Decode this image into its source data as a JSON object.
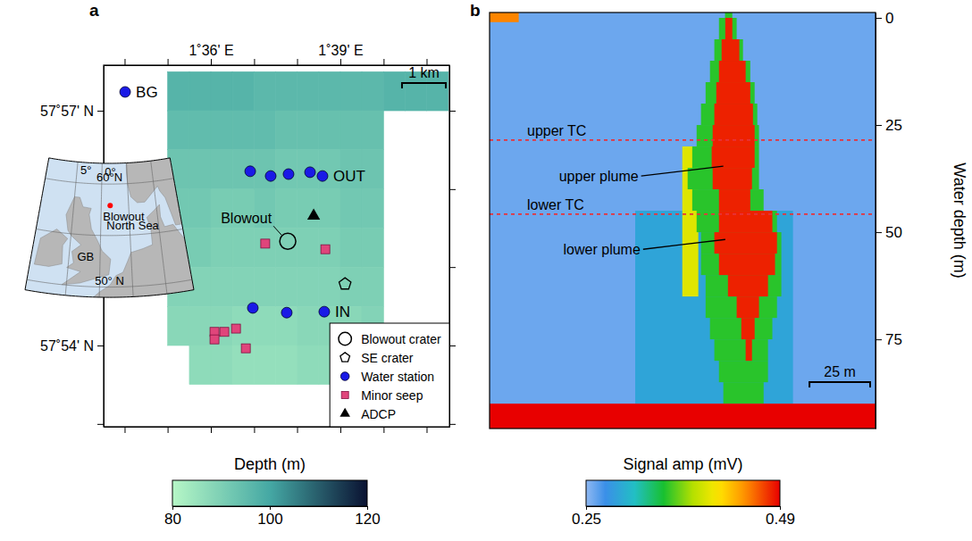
{
  "chart_data": [
    {
      "type": "map",
      "panel": "a",
      "xlim": [
        1.5586,
        1.6921
      ],
      "ylim": [
        57.8827,
        57.9597
      ],
      "xticks": [
        {
          "value": 1.5667,
          "label": null
        },
        {
          "value": 1.5833,
          "label": null
        },
        {
          "value": 1.6,
          "label": "1˚36' E"
        },
        {
          "value": 1.6167,
          "label": null
        },
        {
          "value": 1.6333,
          "label": null
        },
        {
          "value": 1.65,
          "label": "1˚39' E"
        },
        {
          "value": 1.6667,
          "label": null
        },
        {
          "value": 1.6833,
          "label": null
        }
      ],
      "yticks": [
        {
          "value": 57.8833,
          "label": null
        },
        {
          "value": 57.9,
          "label": "57˚54' N"
        },
        {
          "value": 57.9167,
          "label": null
        },
        {
          "value": 57.9333,
          "label": null
        },
        {
          "value": 57.95,
          "label": "57˚57' N"
        }
      ],
      "depth": {
        "lon_edges": [
          1.5833,
          1.5917,
          1.6,
          1.6083,
          1.6167,
          1.625,
          1.6333,
          1.6417,
          1.65,
          1.6583,
          1.6667,
          1.675,
          1.6833,
          1.6917
        ],
        "lat_edges": [
          57.9583,
          57.95,
          57.9417,
          57.9333,
          57.925,
          57.9167,
          57.9083,
          57.9,
          57.8917
        ],
        "values": [
          [
            97,
            97,
            97,
            97,
            96,
            96,
            96,
            96,
            96,
            96,
            97,
            97,
            97
          ],
          [
            95,
            95,
            95,
            95,
            95,
            94,
            94,
            94,
            94,
            94,
            null,
            null,
            null
          ],
          [
            93,
            93,
            93,
            93,
            93,
            92,
            92,
            92,
            93,
            93,
            null,
            null,
            null
          ],
          [
            92,
            92,
            91,
            91,
            92,
            91,
            91,
            91,
            92,
            92,
            null,
            null,
            null
          ],
          [
            91,
            91,
            90,
            90,
            90,
            90,
            90,
            90,
            91,
            91,
            null,
            null,
            null
          ],
          [
            89,
            89,
            89,
            89,
            89,
            89,
            89,
            89,
            90,
            90,
            null,
            null,
            null
          ],
          [
            88,
            88,
            88,
            87,
            87,
            87,
            88,
            88,
            88,
            89,
            null,
            null,
            null
          ],
          [
            null,
            87,
            87,
            86,
            86,
            86,
            87,
            87,
            87,
            88,
            null,
            null,
            null
          ]
        ]
      },
      "colorbar": {
        "label": "Depth (m)",
        "range": [
          80,
          120
        ],
        "ticks": [
          80,
          100,
          120
        ]
      },
      "series": [
        {
          "name": "Blowout crater",
          "marker": "open_circle",
          "color": "#000000",
          "lon": [
            1.6297
          ],
          "lat": [
            57.9222
          ],
          "point_labels": [
            "Blowout"
          ]
        },
        {
          "name": "SE crater",
          "marker": "pentagon",
          "color": "#000000",
          "lon": [
            1.6518
          ],
          "lat": [
            57.9131
          ]
        },
        {
          "name": "Water station",
          "marker": "circle",
          "color": "#1a1ae6",
          "lon": [
            1.5669,
            1.6152,
            1.6231,
            1.63,
            1.6383,
            1.6431,
            1.6162,
            1.6293,
            1.6438
          ],
          "lat": [
            57.954,
            57.9371,
            57.9361,
            57.9365,
            57.9369,
            57.9361,
            57.908,
            57.907,
            57.9072
          ],
          "point_labels": [
            "BG",
            null,
            null,
            null,
            null,
            "OUT",
            null,
            null,
            "IN"
          ]
        },
        {
          "name": "Minor seep",
          "marker": "square",
          "color": "#e0457b",
          "lon": [
            1.621,
            1.6442,
            1.6014,
            1.6014,
            1.6052,
            1.6097,
            1.6135
          ],
          "lat": [
            57.9217,
            57.9205,
            57.9029,
            57.9013,
            57.9029,
            57.9036,
            57.8994
          ]
        },
        {
          "name": "ADCP",
          "marker": "triangle",
          "color": "#000000",
          "lon": [
            1.6397
          ],
          "lat": [
            57.9276
          ]
        }
      ],
      "legend": "lower right",
      "scale_bar": {
        "label": "1 km",
        "length": 1
      },
      "inset": {
        "lonlim": [
          -11,
          14
        ],
        "latlim": [
          49,
          62
        ],
        "lon_ticks": [
          {
            "value": -5,
            "label": "5°"
          },
          {
            "value": 0,
            "label": "0°"
          },
          {
            "value": 5,
            "label": null
          },
          {
            "value": 10,
            "label": null
          }
        ],
        "lat_ticks": [
          {
            "value": 50,
            "label": "50° N"
          },
          {
            "value": 55,
            "label": null
          },
          {
            "value": 60,
            "label": "60°N"
          }
        ],
        "labels": [
          {
            "text": "GB",
            "lon": -2.3,
            "lat": 52.5
          },
          {
            "text": "North Sea",
            "lon": 5.5,
            "lat": 55.5
          }
        ],
        "site": {
          "label": "Blowout",
          "lon": 1.63,
          "lat": 57.92,
          "color": "#ff0000"
        }
      }
    },
    {
      "type": "heatmap",
      "panel": "b",
      "xlim": [
        0,
        159
      ],
      "ylim": [
        -1.25,
        95.8
      ],
      "yticks": [
        0,
        25,
        50,
        75
      ],
      "ylabel": "Water depth (m)",
      "tick_labels": "y",
      "background": 0.26,
      "cells": [
        [
          60,
          125,
          45,
          90,
          0.29
        ],
        [
          79.4,
          86.0,
          30,
          65,
          0.4
        ],
        [
          97,
          100,
          -1.25,
          0,
          0.35
        ],
        [
          94.5,
          101.8,
          0,
          5,
          0.35
        ],
        [
          92.6,
          104.4,
          5,
          10,
          0.35
        ],
        [
          90.8,
          107.4,
          10,
          15,
          0.35
        ],
        [
          89.0,
          109.2,
          15,
          20,
          0.35
        ],
        [
          87.1,
          110.3,
          20,
          25,
          0.35
        ],
        [
          85.3,
          111.0,
          25,
          30,
          0.35
        ],
        [
          83.5,
          111.0,
          30,
          35,
          0.35
        ],
        [
          81.6,
          111.0,
          35,
          40,
          0.35
        ],
        [
          83.5,
          112.9,
          40,
          45,
          0.35
        ],
        [
          85.3,
          118.4,
          45,
          50,
          0.35
        ],
        [
          87.1,
          120.2,
          50,
          55,
          0.35
        ],
        [
          87.1,
          120.2,
          55,
          60,
          0.35
        ],
        [
          89.0,
          120.2,
          60,
          65,
          0.35
        ],
        [
          89.0,
          118.4,
          65,
          70,
          0.35
        ],
        [
          90.8,
          116.5,
          70,
          75,
          0.35
        ],
        [
          92.6,
          114.7,
          75,
          80,
          0.35
        ],
        [
          94.5,
          114.7,
          80,
          85,
          0.35
        ],
        [
          96.3,
          112.9,
          85,
          90,
          0.35
        ],
        [
          97.1,
          100.0,
          0,
          5,
          0.48
        ],
        [
          95.6,
          102.9,
          5,
          10,
          0.48
        ],
        [
          94.5,
          105.5,
          10,
          15,
          0.48
        ],
        [
          93.4,
          107.4,
          15,
          20,
          0.48
        ],
        [
          92.6,
          108.5,
          20,
          25,
          0.48
        ],
        [
          91.9,
          109.2,
          25,
          30,
          0.48
        ],
        [
          91.5,
          109.2,
          30,
          35,
          0.48
        ],
        [
          91.9,
          108.1,
          35,
          40,
          0.48
        ],
        [
          94.5,
          107.4,
          40,
          45,
          0.48
        ],
        [
          94.5,
          116.5,
          45,
          50,
          0.48
        ],
        [
          92.6,
          118.4,
          50,
          55,
          0.48
        ],
        [
          94.5,
          117.6,
          55,
          60,
          0.48
        ],
        [
          98.2,
          114.7,
          60,
          65,
          0.48
        ],
        [
          101.8,
          111.0,
          65,
          70,
          0.48
        ],
        [
          103.7,
          109.2,
          70,
          75,
          0.48
        ],
        [
          105.5,
          108.1,
          75,
          80,
          0.48
        ],
        [
          0,
          159,
          90,
          95.8,
          0.49
        ],
        [
          0,
          12,
          -1.25,
          1,
          0.45
        ]
      ],
      "lines": [
        {
          "label": "upper TC",
          "depth": 28.5,
          "color": "#e8333a",
          "line_style": "dashed"
        },
        {
          "label": "lower TC",
          "depth": 45.8,
          "color": "#e8333a",
          "line_style": "dashed"
        }
      ],
      "annotations": [
        {
          "text": "upper plume",
          "x": 96.3,
          "depth": 34.6
        },
        {
          "text": "lower plume",
          "x": 97.1,
          "depth": 51.7
        }
      ],
      "colorbar": {
        "label": "Signal amp (mV)",
        "range": [
          0.25,
          0.49
        ],
        "ticks": [
          0.25,
          0.49
        ]
      },
      "scale_bar": {
        "label": "25 m",
        "length": 25
      }
    }
  ]
}
